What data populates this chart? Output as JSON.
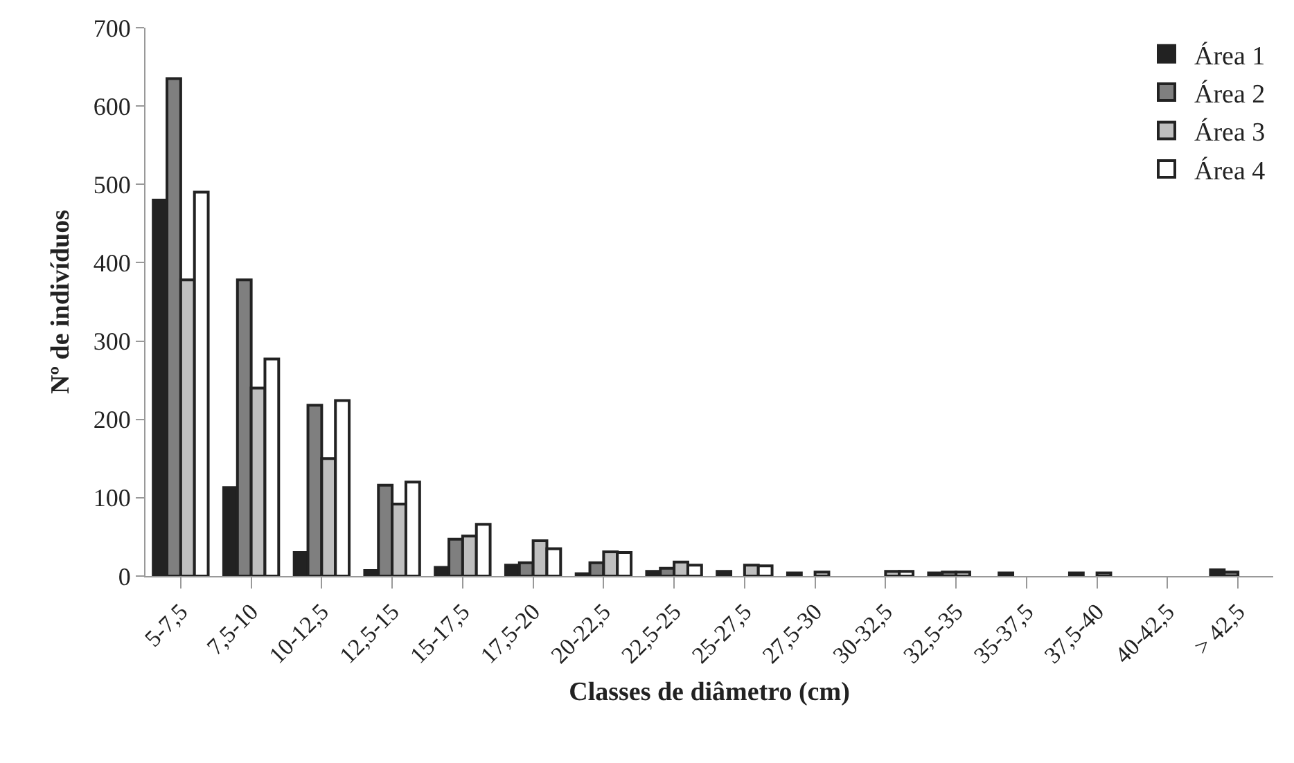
{
  "chart_data": {
    "type": "bar",
    "xlabel": "Classes de diâmetro (cm)",
    "ylabel": "Nº de indivíduos",
    "categories": [
      "5-7,5",
      "7,5-10",
      "10-12,5",
      "12,5-15",
      "15-17,5",
      "17,5-20",
      "20-22,5",
      "22,5-25",
      "25-27,5",
      "27,5-30",
      "30-32,5",
      "32,5-35",
      "35-37,5",
      "37,5-40",
      "40-42,5",
      "> 42,5"
    ],
    "series": [
      {
        "name": "Área 1",
        "color": "#222222",
        "values": [
          480,
          113,
          30,
          7,
          11,
          14,
          3,
          6,
          6,
          4,
          null,
          4,
          4,
          4,
          null,
          8
        ]
      },
      {
        "name": "Área 2",
        "color": "#7f7f7f",
        "values": [
          635,
          378,
          218,
          116,
          47,
          17,
          17,
          10,
          null,
          null,
          null,
          5,
          null,
          null,
          null,
          5
        ]
      },
      {
        "name": "Área 3",
        "color": "#bfbfbf",
        "values": [
          378,
          240,
          150,
          92,
          51,
          45,
          31,
          18,
          14,
          5,
          6,
          5,
          null,
          4,
          null,
          null
        ]
      },
      {
        "name": "Área 4",
        "color": "#ffffff",
        "values": [
          490,
          277,
          224,
          120,
          66,
          35,
          30,
          14,
          13,
          null,
          6,
          null,
          null,
          null,
          null,
          null
        ]
      }
    ],
    "ylim": [
      0,
      700
    ],
    "yticks": [
      0,
      100,
      200,
      300,
      400,
      500,
      600,
      700
    ],
    "grid": false,
    "legend": "top right"
  }
}
